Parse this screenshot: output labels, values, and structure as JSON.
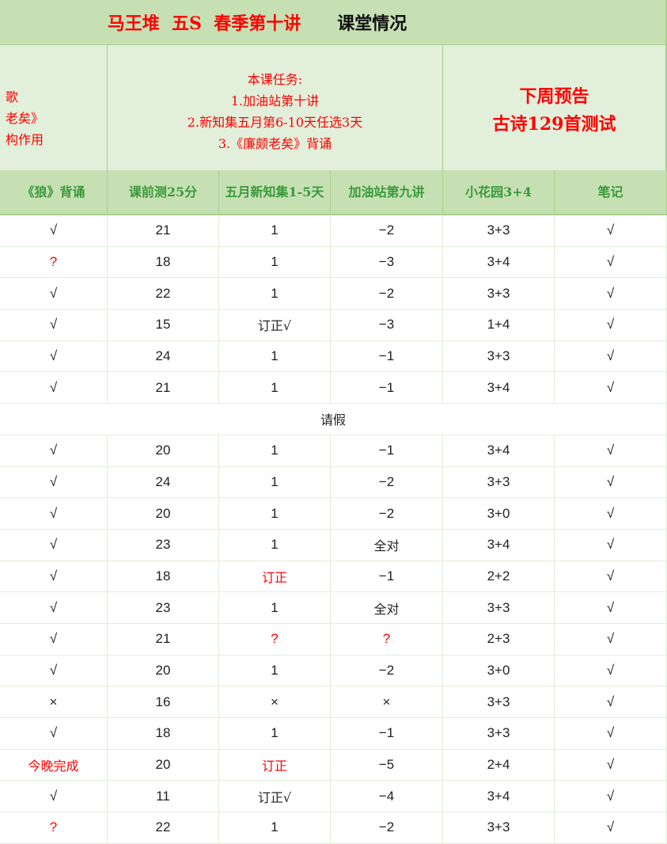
{
  "title": {
    "red_part": "马王堆  五S  春季第十讲",
    "black_part": "课堂情况"
  },
  "info": {
    "left_partial_lines": [
      "歌",
      "老矣》",
      "构作用"
    ],
    "tasks_lines": [
      "本课任务:",
      "1.加油站第十讲",
      "2.新知集五月第6-10天任选3天",
      "3.《廉颇老矣》背诵"
    ],
    "preview_lines": [
      "下周预告",
      "古诗129首测试"
    ]
  },
  "colors": {
    "header_bg": "#c6e0b4",
    "info_bg": "#e2efda",
    "header_text": "#3a9a3a",
    "alert": "#ff0000"
  },
  "columns": [
    "《狼》背诵",
    "课前测25分",
    "五月新知集1-5天",
    "加油站第九讲",
    "小花园3+4",
    "笔记"
  ],
  "rows": [
    {
      "cells": [
        {
          "t": "√"
        },
        {
          "t": "21"
        },
        {
          "t": "1"
        },
        {
          "t": "−2"
        },
        {
          "t": "3+3"
        },
        {
          "t": "√"
        }
      ]
    },
    {
      "cells": [
        {
          "t": "?",
          "red": true
        },
        {
          "t": "18"
        },
        {
          "t": "1"
        },
        {
          "t": "−3"
        },
        {
          "t": "3+4"
        },
        {
          "t": "√"
        }
      ]
    },
    {
      "cells": [
        {
          "t": "√"
        },
        {
          "t": "22"
        },
        {
          "t": "1"
        },
        {
          "t": "−2"
        },
        {
          "t": "3+3"
        },
        {
          "t": "√"
        }
      ]
    },
    {
      "cells": [
        {
          "t": "√"
        },
        {
          "t": "15"
        },
        {
          "t": "订正√"
        },
        {
          "t": "−3"
        },
        {
          "t": "1+4"
        },
        {
          "t": "√"
        }
      ]
    },
    {
      "cells": [
        {
          "t": "√"
        },
        {
          "t": "24"
        },
        {
          "t": "1"
        },
        {
          "t": "−1"
        },
        {
          "t": "3+3"
        },
        {
          "t": "√"
        }
      ]
    },
    {
      "cells": [
        {
          "t": "√"
        },
        {
          "t": "21"
        },
        {
          "t": "1"
        },
        {
          "t": "−1"
        },
        {
          "t": "3+4"
        },
        {
          "t": "√"
        }
      ]
    },
    {
      "merged": "请假"
    },
    {
      "cells": [
        {
          "t": "√"
        },
        {
          "t": "20"
        },
        {
          "t": "1"
        },
        {
          "t": "−1"
        },
        {
          "t": "3+4"
        },
        {
          "t": "√"
        }
      ]
    },
    {
      "cells": [
        {
          "t": "√"
        },
        {
          "t": "24"
        },
        {
          "t": "1"
        },
        {
          "t": "−2"
        },
        {
          "t": "3+3"
        },
        {
          "t": "√"
        }
      ]
    },
    {
      "cells": [
        {
          "t": "√"
        },
        {
          "t": "20"
        },
        {
          "t": "1"
        },
        {
          "t": "−2"
        },
        {
          "t": "3+0"
        },
        {
          "t": "√"
        }
      ]
    },
    {
      "cells": [
        {
          "t": "√"
        },
        {
          "t": "23"
        },
        {
          "t": "1"
        },
        {
          "t": "全对"
        },
        {
          "t": "3+4"
        },
        {
          "t": "√"
        }
      ]
    },
    {
      "cells": [
        {
          "t": "√"
        },
        {
          "t": "18"
        },
        {
          "t": "订正",
          "red": true
        },
        {
          "t": "−1"
        },
        {
          "t": "2+2"
        },
        {
          "t": "√"
        }
      ]
    },
    {
      "cells": [
        {
          "t": "√"
        },
        {
          "t": "23"
        },
        {
          "t": "1"
        },
        {
          "t": "全对"
        },
        {
          "t": "3+3"
        },
        {
          "t": "√"
        }
      ]
    },
    {
      "cells": [
        {
          "t": "√"
        },
        {
          "t": "21"
        },
        {
          "t": "?",
          "red": true
        },
        {
          "t": "?",
          "red": true
        },
        {
          "t": "2+3"
        },
        {
          "t": "√"
        }
      ]
    },
    {
      "cells": [
        {
          "t": "√"
        },
        {
          "t": "20"
        },
        {
          "t": "1"
        },
        {
          "t": "−2"
        },
        {
          "t": "3+0"
        },
        {
          "t": "√"
        }
      ]
    },
    {
      "cells": [
        {
          "t": "×"
        },
        {
          "t": "16"
        },
        {
          "t": "×"
        },
        {
          "t": "×"
        },
        {
          "t": "3+3"
        },
        {
          "t": "√"
        }
      ]
    },
    {
      "cells": [
        {
          "t": "√"
        },
        {
          "t": "18"
        },
        {
          "t": "1"
        },
        {
          "t": "−1"
        },
        {
          "t": "3+3"
        },
        {
          "t": "√"
        }
      ]
    },
    {
      "cells": [
        {
          "t": "今晚完成",
          "red": true
        },
        {
          "t": "20"
        },
        {
          "t": "订正",
          "red": true
        },
        {
          "t": "−5"
        },
        {
          "t": "2+4"
        },
        {
          "t": "√"
        }
      ]
    },
    {
      "cells": [
        {
          "t": "√"
        },
        {
          "t": "11"
        },
        {
          "t": "订正√"
        },
        {
          "t": "−4"
        },
        {
          "t": "3+4"
        },
        {
          "t": "√"
        }
      ]
    },
    {
      "cells": [
        {
          "t": "?",
          "red": true
        },
        {
          "t": "22"
        },
        {
          "t": "1"
        },
        {
          "t": "−2"
        },
        {
          "t": "3+3"
        },
        {
          "t": "√"
        }
      ]
    }
  ]
}
